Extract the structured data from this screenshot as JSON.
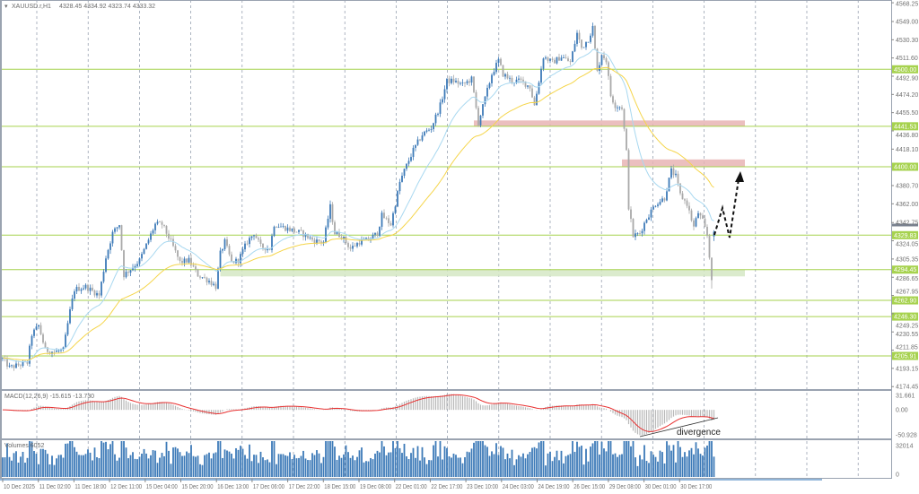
{
  "header": {
    "symbol": "XAUUSD.r,H1",
    "ohlc": "4328.45 4334.92 4323.74 4333.32"
  },
  "colors": {
    "bull": "#3d7ab8",
    "bear": "#a9a9a9",
    "ma_fast": "#a8d8f0",
    "ma_slow": "#f5d54a",
    "level": "#a6d24e",
    "resistance_zone": "#e8b4b4",
    "support_zone": "#d5e8c4",
    "macd_signal": "#e83030",
    "macd_hist": "#b8b8b8",
    "volume": "#3d7ab8",
    "grid": "#8a94a6"
  },
  "chart_data": [
    {
      "type": "candlestick",
      "title": "XAUUSD.r,H1",
      "timeframe": "H1",
      "ylim": [
        4174.45,
        4568.25
      ],
      "y_ticks": [
        "4568.25",
        "4549.00",
        "4530.30",
        "4511.60",
        "4492.90",
        "4474.20",
        "4455.50",
        "4436.80",
        "4418.10",
        "4380.70",
        "4362.00",
        "4342.75",
        "4324.05",
        "4305.35",
        "4286.65",
        "4267.95",
        "4249.25",
        "4230.55",
        "4211.85",
        "4193.15",
        "4174.45"
      ],
      "x_ticks": [
        "10 Dec 2025",
        "11 Dec 02:00",
        "11 Dec 18:00",
        "12 Dec 11:00",
        "15 Dec 04:00",
        "15 Dec 20:00",
        "16 Dec 13:00",
        "17 Dec 06:00",
        "17 Dec 22:00",
        "18 Dec 15:00",
        "19 Dec 08:00",
        "22 Dec 01:00",
        "22 Dec 17:00",
        "23 Dec 10:00",
        "24 Dec 03:00",
        "24 Dec 19:00",
        "26 Dec 15:00",
        "29 Dec 08:00",
        "30 Dec 01:00",
        "30 Dec 17:00"
      ],
      "bar_index": [
        0,
        3,
        11,
        13,
        16,
        19,
        23,
        27,
        30,
        32,
        37,
        43,
        46,
        49,
        52,
        54,
        57,
        61,
        65,
        68,
        71,
        75,
        79,
        83,
        87,
        92,
        95,
        97,
        99,
        102,
        105,
        109,
        112,
        115,
        119,
        121,
        125,
        129,
        133,
        139,
        143,
        146,
        148,
        151,
        155,
        159,
        163,
        167,
        169,
        173,
        175,
        177,
        179,
        183,
        187,
        191,
        195,
        198,
        201,
        205,
        209,
        212,
        215,
        218,
        221,
        223,
        227,
        231,
        235,
        237,
        239,
        241,
        245,
        249,
        253,
        256,
        258,
        261,
        263,
        265,
        267,
        269,
        271,
        273,
        276,
        278,
        279,
        281,
        284,
        287,
        291,
        295,
        298,
        300,
        302,
        305,
        308,
        310,
        312,
        314,
        316,
        317
      ],
      "close": [
        4203,
        4194,
        4199,
        4228,
        4237,
        4212,
        4210,
        4212,
        4252,
        4274,
        4277,
        4268,
        4307,
        4332,
        4341,
        4289,
        4295,
        4304,
        4325,
        4341,
        4341,
        4323,
        4302,
        4304,
        4289,
        4283,
        4277,
        4311,
        4323,
        4302,
        4304,
        4323,
        4332,
        4318,
        4316,
        4341,
        4338,
        4335,
        4332,
        4324,
        4323,
        4359,
        4332,
        4329,
        4316,
        4323,
        4325,
        4332,
        4350,
        4341,
        4362,
        4384,
        4396,
        4417,
        4433,
        4440,
        4463,
        4488,
        4488,
        4484,
        4490,
        4445,
        4470,
        4495,
        4509,
        4495,
        4488,
        4488,
        4482,
        4463,
        4488,
        4513,
        4507,
        4513,
        4507,
        4537,
        4522,
        4531,
        4543,
        4497,
        4516,
        4509,
        4473,
        4463,
        4461,
        4415,
        4359,
        4329,
        4332,
        4347,
        4362,
        4368,
        4396,
        4390,
        4371,
        4362,
        4338,
        4353,
        4344,
        4329,
        4286,
        4333
      ],
      "last_bar": {
        "open": 4328.45,
        "high": 4334.92,
        "low": 4323.74,
        "close": 4333.32
      },
      "moving_averages": [
        {
          "color": "#a8d8f0"
        },
        {
          "color": "#f5d54a"
        }
      ],
      "levels": [
        {
          "price": 4500.0,
          "label": "4500.00"
        },
        {
          "price": 4441.53,
          "label": "4441.53"
        },
        {
          "price": 4400.0,
          "label": "4400.00"
        },
        {
          "price": 4329.83,
          "label": "4329.83"
        },
        {
          "price": 4294.45,
          "label": "4294.45"
        },
        {
          "price": 4262.9,
          "label": "4262.90"
        },
        {
          "price": 4246.3,
          "label": "4246.30"
        },
        {
          "price": 4205.91,
          "label": "4205.91"
        }
      ],
      "zones": [
        {
          "kind": "resistance",
          "from_price": 4441.53,
          "to_price": 4447.5,
          "start_bar": 210
        },
        {
          "kind": "resistance",
          "from_price": 4400.0,
          "to_price": 4407.5,
          "start_bar": 276
        },
        {
          "kind": "support",
          "from_price": 4287.5,
          "to_price": 4294.45,
          "start_bar": 97
        }
      ],
      "projection": "dashed zigzag arrow up toward 4400 zone",
      "grid": true
    },
    {
      "type": "line",
      "title": "MACD(12,26,9) -15.615 -13.730",
      "ylim": [
        -50.928,
        31.661
      ],
      "y_ticks": [
        "31.661",
        "0.00",
        "-50.928"
      ],
      "series": [
        {
          "name": "MACD",
          "style": "histogram"
        },
        {
          "name": "Signal",
          "style": "line"
        }
      ],
      "annotation": "divergence"
    },
    {
      "type": "bar",
      "title": "Volumes 6052",
      "ylim": [
        0,
        32014
      ],
      "y_ticks": [
        "32014",
        "0"
      ]
    }
  ]
}
